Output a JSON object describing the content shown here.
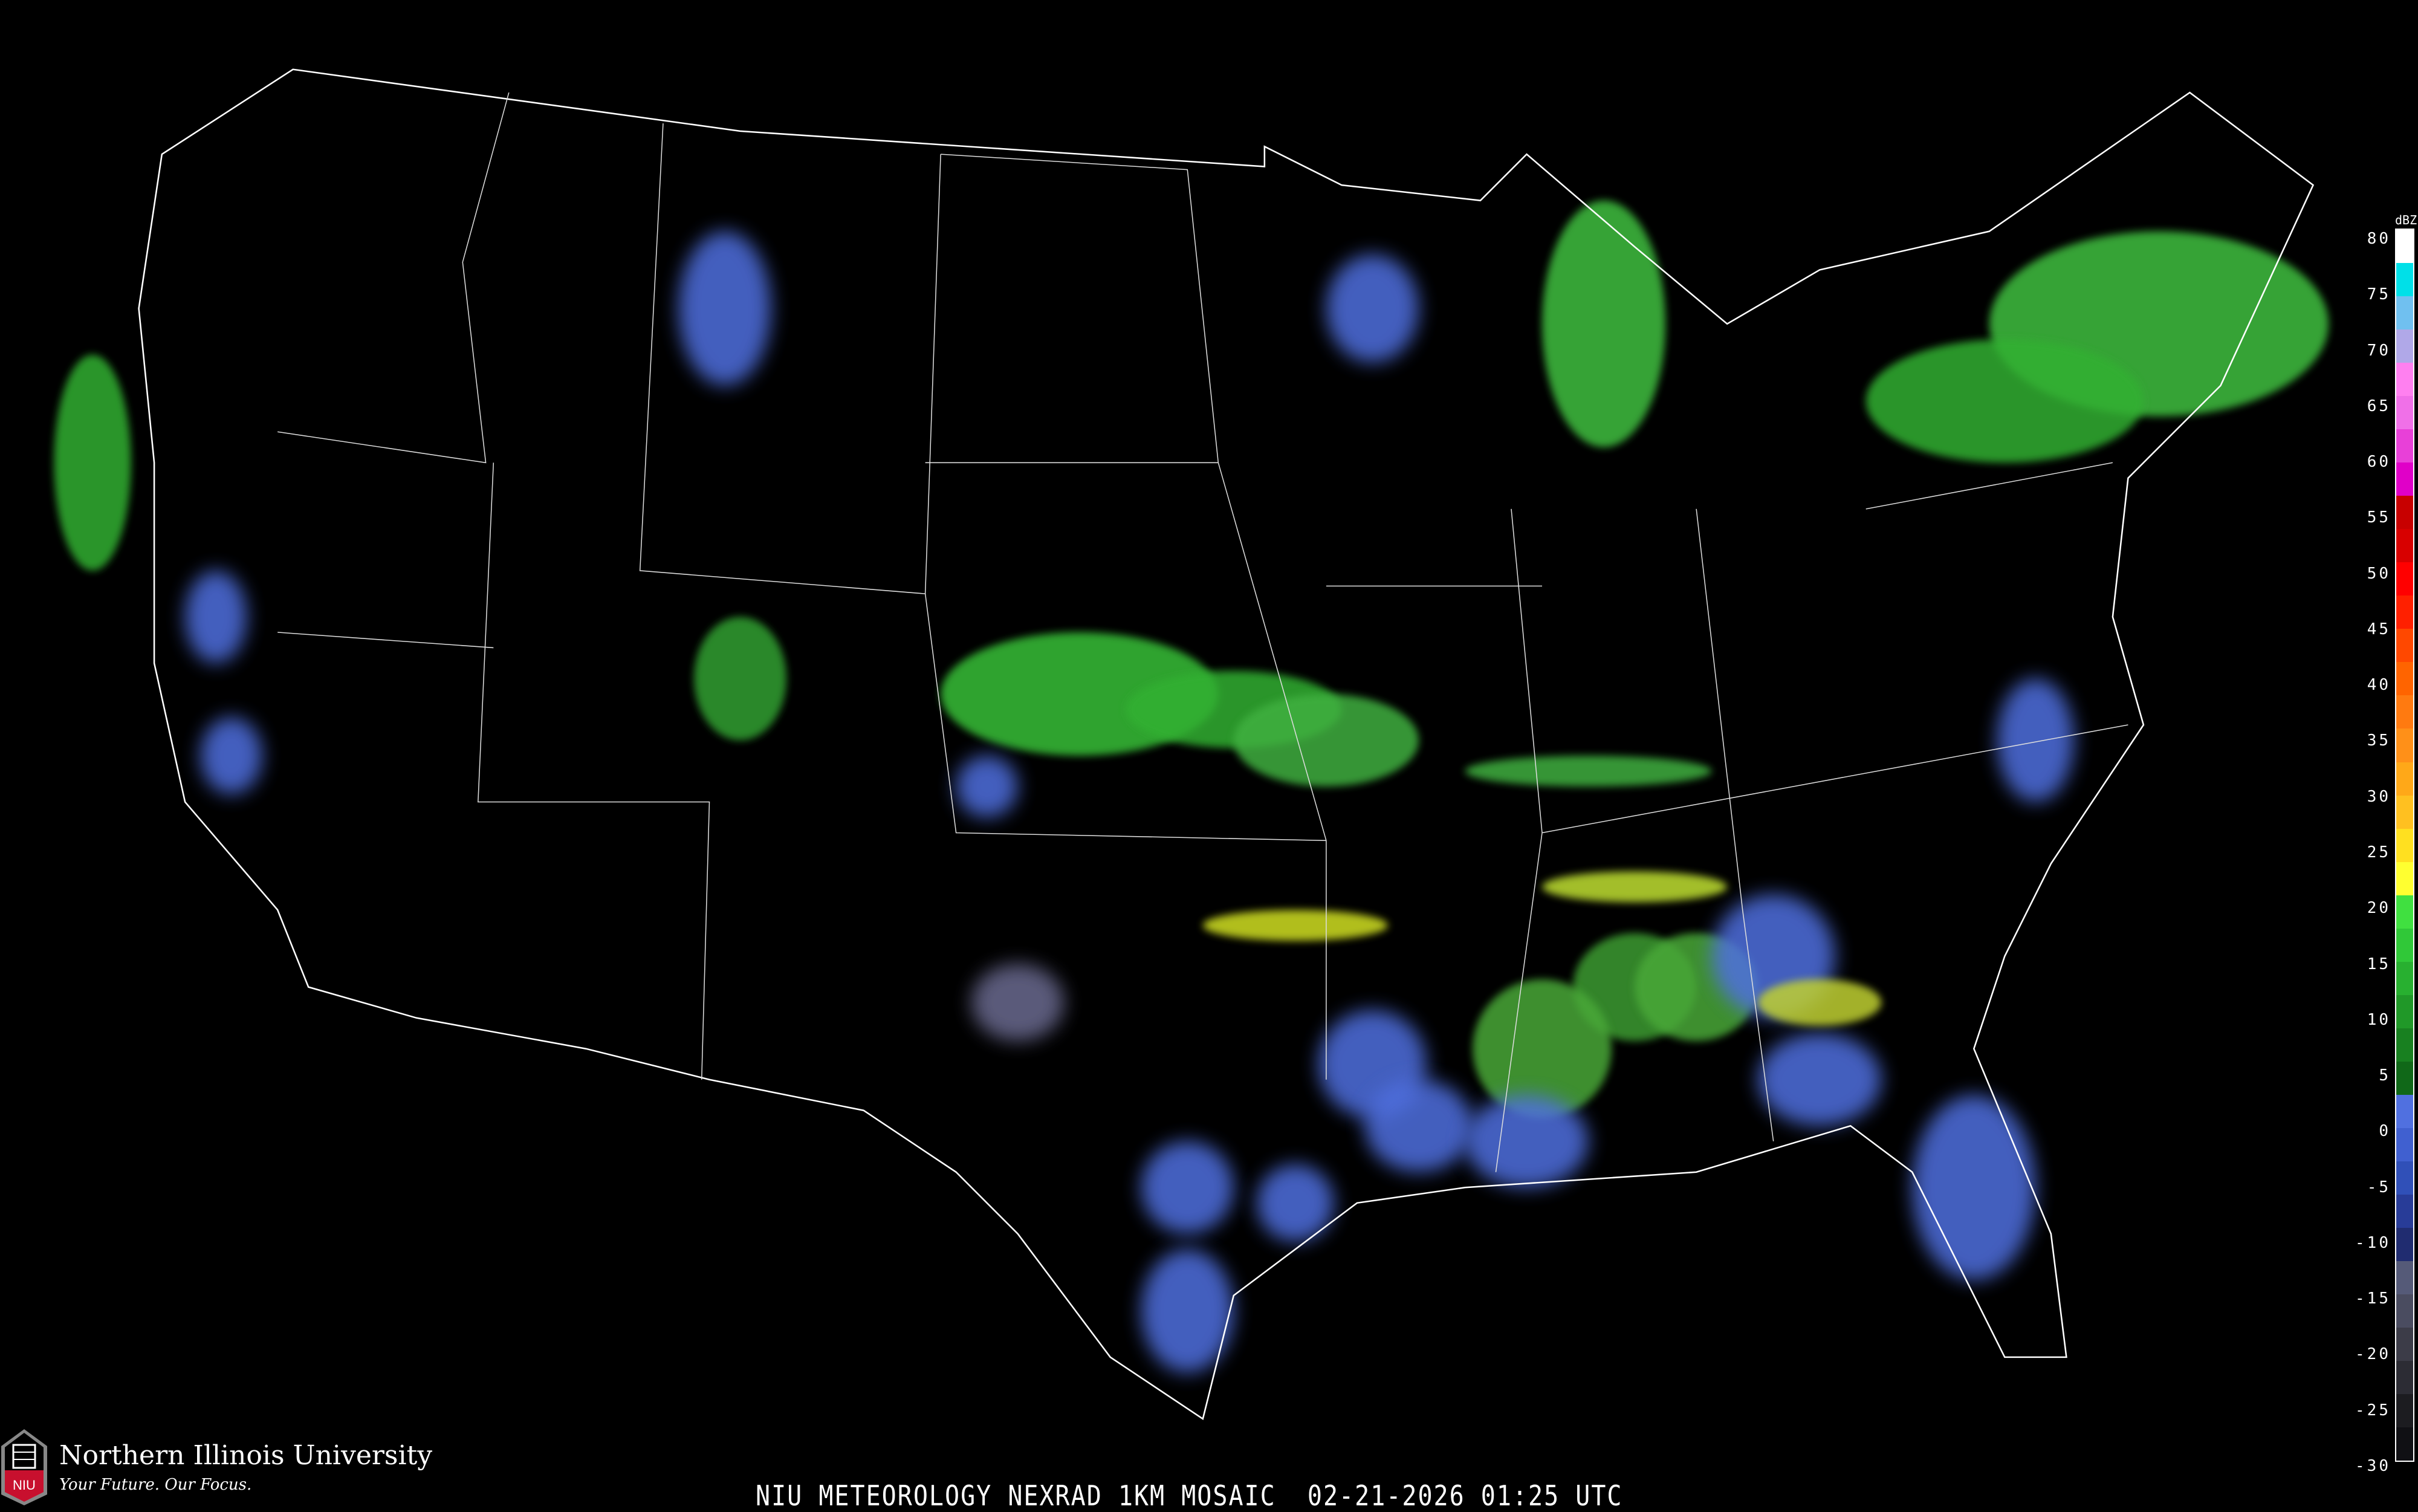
{
  "map": {
    "type": "radar-reflectivity-mosaic",
    "region": "contiguous-us",
    "background_color": "#000000",
    "boundary_color": "#ffffff",
    "highway_color": "#8b4a2b"
  },
  "legend": {
    "unit": "dBZ",
    "labels": [
      "80",
      "75",
      "70",
      "65",
      "60",
      "55",
      "50",
      "45",
      "40",
      "35",
      "30",
      "25",
      "20",
      "15",
      "10",
      "5",
      "0",
      "-5",
      "-10",
      "-15",
      "-20",
      "-25",
      "-30"
    ],
    "colors": [
      "#ffffff",
      "#00e0e8",
      "#70c0f0",
      "#b0a8e8",
      "#ff80f0",
      "#f070e8",
      "#e840d8",
      "#e000c8",
      "#c80000",
      "#d80000",
      "#ff0000",
      "#ff2000",
      "#ff4800",
      "#ff6400",
      "#ff7a10",
      "#ff9018",
      "#ffa818",
      "#ffc020",
      "#ffe020",
      "#ffff30",
      "#40e040",
      "#30c838",
      "#28b030",
      "#209828",
      "#188020",
      "#106818",
      "#5070e0",
      "#4060d0",
      "#3050b8",
      "#283c98",
      "#202c70",
      "#555a78",
      "#4a4c60",
      "#3c3c48",
      "#2c2c34",
      "#1c1c20",
      "#101014"
    ]
  },
  "caption": "NIU METEOROLOGY NEXRAD 1KM MOSAIC  02-21-2026 01:25 UTC",
  "logo": {
    "name": "Northern Illinois University",
    "tagline": "Your Future. Our Focus.",
    "mark": "NIU",
    "accent": "#c8102e"
  }
}
